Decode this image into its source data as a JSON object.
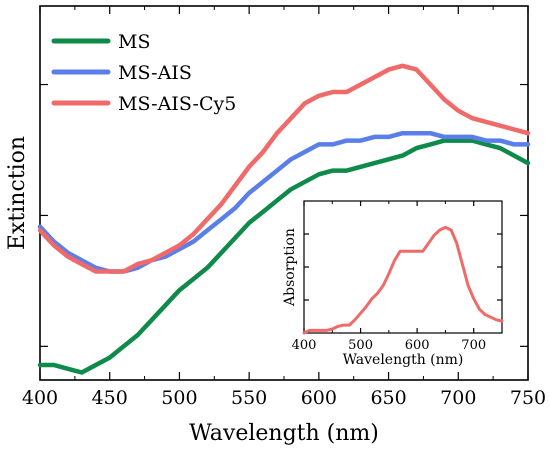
{
  "chart_data": [
    {
      "type": "line",
      "title": "",
      "xlabel": "Wavelength (nm)",
      "ylabel": "Extinction",
      "xlim": [
        400,
        750
      ],
      "ylim": [
        0,
        1
      ],
      "x_ticks": [
        "400",
        "450",
        "500",
        "550",
        "600",
        "650",
        "700",
        "750"
      ],
      "y_ticks_labeled": false,
      "grid": false,
      "legend": "top-left",
      "series": [
        {
          "name": "MS",
          "color": "#0e8a4a",
          "x": [
            400,
            410,
            420,
            430,
            440,
            450,
            460,
            470,
            480,
            490,
            500,
            510,
            520,
            530,
            540,
            550,
            560,
            570,
            580,
            590,
            600,
            610,
            620,
            630,
            640,
            650,
            660,
            670,
            680,
            690,
            700,
            710,
            720,
            730,
            740,
            750
          ],
          "y": [
            0.04,
            0.04,
            0.03,
            0.02,
            0.04,
            0.06,
            0.09,
            0.12,
            0.16,
            0.2,
            0.24,
            0.27,
            0.3,
            0.34,
            0.38,
            0.42,
            0.45,
            0.48,
            0.51,
            0.53,
            0.55,
            0.56,
            0.56,
            0.57,
            0.58,
            0.59,
            0.6,
            0.62,
            0.63,
            0.64,
            0.64,
            0.64,
            0.63,
            0.62,
            0.6,
            0.58
          ]
        },
        {
          "name": "MS-AIS",
          "color": "#5b7fe8",
          "x": [
            400,
            410,
            420,
            430,
            440,
            450,
            460,
            470,
            480,
            490,
            500,
            510,
            520,
            530,
            540,
            550,
            560,
            570,
            580,
            590,
            600,
            610,
            620,
            630,
            640,
            650,
            660,
            670,
            680,
            690,
            700,
            710,
            720,
            730,
            740,
            750
          ],
          "y": [
            0.41,
            0.37,
            0.34,
            0.32,
            0.3,
            0.29,
            0.29,
            0.3,
            0.32,
            0.33,
            0.35,
            0.37,
            0.4,
            0.43,
            0.46,
            0.5,
            0.53,
            0.56,
            0.59,
            0.61,
            0.63,
            0.63,
            0.64,
            0.64,
            0.65,
            0.65,
            0.66,
            0.66,
            0.66,
            0.65,
            0.65,
            0.65,
            0.64,
            0.64,
            0.63,
            0.63
          ]
        },
        {
          "name": "MS-AIS-Cy5",
          "color": "#f06a6a",
          "x": [
            400,
            410,
            420,
            430,
            440,
            450,
            460,
            470,
            480,
            490,
            500,
            510,
            520,
            530,
            540,
            550,
            560,
            570,
            580,
            590,
            600,
            610,
            620,
            630,
            640,
            650,
            660,
            670,
            680,
            690,
            700,
            710,
            720,
            730,
            740,
            750
          ],
          "y": [
            0.4,
            0.36,
            0.33,
            0.31,
            0.29,
            0.29,
            0.29,
            0.31,
            0.32,
            0.34,
            0.36,
            0.39,
            0.43,
            0.47,
            0.52,
            0.57,
            0.61,
            0.66,
            0.7,
            0.74,
            0.76,
            0.77,
            0.77,
            0.79,
            0.81,
            0.83,
            0.84,
            0.83,
            0.79,
            0.75,
            0.72,
            0.7,
            0.69,
            0.68,
            0.67,
            0.66
          ]
        }
      ]
    },
    {
      "type": "line",
      "title": "",
      "xlabel": "Wavelength (nm)",
      "ylabel": "Absorption",
      "xlim": [
        400,
        750
      ],
      "ylim": [
        0,
        1
      ],
      "x_ticks": [
        "400",
        "500",
        "600",
        "700"
      ],
      "y_ticks_labeled": false,
      "grid": false,
      "legend": "none",
      "series": [
        {
          "color": "#f06a6a",
          "x": [
            400,
            410,
            420,
            430,
            440,
            450,
            460,
            470,
            480,
            490,
            500,
            510,
            520,
            530,
            540,
            550,
            560,
            570,
            580,
            590,
            600,
            610,
            620,
            630,
            640,
            650,
            660,
            670,
            680,
            690,
            700,
            710,
            720,
            730,
            740,
            750
          ],
          "y": [
            0.0,
            0.02,
            0.02,
            0.02,
            0.02,
            0.03,
            0.05,
            0.06,
            0.06,
            0.1,
            0.15,
            0.2,
            0.26,
            0.3,
            0.36,
            0.45,
            0.55,
            0.62,
            0.62,
            0.62,
            0.62,
            0.62,
            0.68,
            0.74,
            0.78,
            0.8,
            0.78,
            0.68,
            0.52,
            0.36,
            0.26,
            0.18,
            0.14,
            0.12,
            0.1,
            0.09
          ]
        }
      ]
    }
  ]
}
